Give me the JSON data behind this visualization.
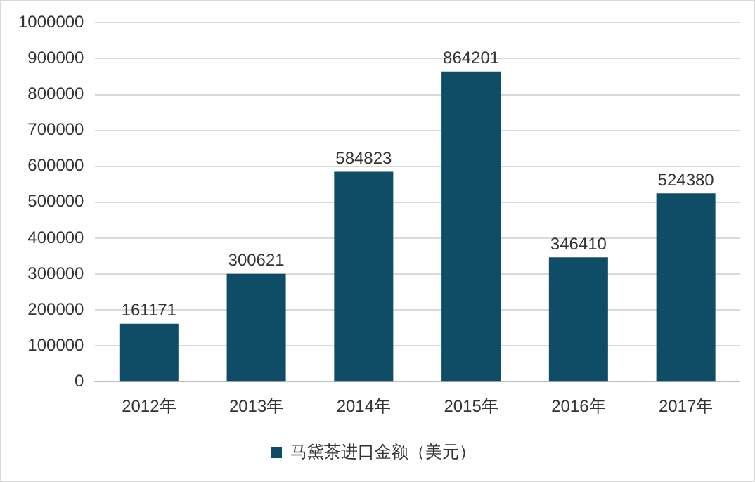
{
  "chart_data": {
    "type": "bar",
    "categories": [
      "2012年",
      "2013年",
      "2014年",
      "2015年",
      "2016年",
      "2017年"
    ],
    "series": [
      {
        "name": "马黛茶进口金额（美元）",
        "color": "#0f4d66",
        "values": [
          161171,
          300621,
          584823,
          864201,
          346410,
          524380
        ]
      }
    ],
    "ylim": [
      0,
      1000000
    ],
    "yticks": [
      0,
      100000,
      200000,
      300000,
      400000,
      500000,
      600000,
      700000,
      800000,
      900000,
      1000000
    ],
    "grid": "y",
    "legend": "bottom",
    "data_labels": true
  }
}
